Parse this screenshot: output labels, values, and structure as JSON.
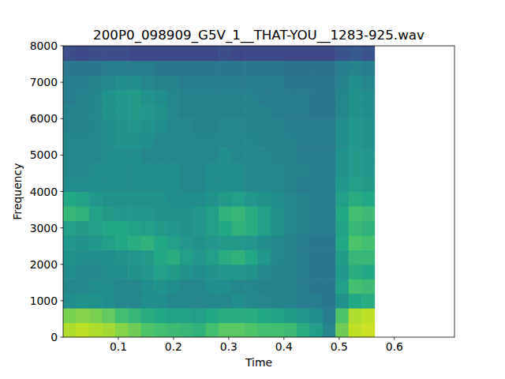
{
  "chart_data": {
    "type": "heatmap",
    "title": "200P0_098909_G5V_1__THAT-YOU__1283-925.wav",
    "x_label": "Time",
    "y_label": "Frequency",
    "xlim": [
      0,
      0.709
    ],
    "ylim": [
      0,
      8000
    ],
    "xticks": [
      0.1,
      0.2,
      0.3,
      0.4,
      0.5,
      0.6
    ],
    "yticks": [
      0,
      1000,
      2000,
      3000,
      4000,
      5000,
      6000,
      7000,
      8000
    ],
    "color_range": [
      0,
      100
    ],
    "x": [
      0,
      0.0235,
      0.047,
      0.0705,
      0.094,
      0.1175,
      0.141,
      0.1645,
      0.188,
      0.2115,
      0.235,
      0.2585,
      0.282,
      0.3055,
      0.329,
      0.3525,
      0.376,
      0.3995,
      0.423,
      0.4465,
      0.47,
      0.4935,
      0.517,
      0.5405,
      0.564
    ],
    "y": [
      0,
      400,
      800,
      1200,
      1600,
      2000,
      2400,
      2800,
      3200,
      3600,
      4000,
      4400,
      4800,
      5200,
      5600,
      6000,
      6400,
      6800,
      7200,
      7600,
      8000
    ],
    "cells": [
      [
        88,
        90,
        88,
        86,
        82,
        78,
        72,
        70,
        68,
        66,
        64,
        70,
        74,
        74,
        72,
        70,
        70,
        68,
        62,
        55,
        45,
        78,
        90,
        92
      ],
      [
        80,
        82,
        80,
        76,
        70,
        66,
        62,
        60,
        58,
        58,
        56,
        60,
        62,
        62,
        62,
        60,
        58,
        55,
        52,
        48,
        42,
        72,
        88,
        90
      ],
      [
        48,
        50,
        50,
        48,
        46,
        46,
        48,
        48,
        46,
        46,
        45,
        46,
        46,
        48,
        46,
        45,
        44,
        44,
        42,
        42,
        40,
        50,
        60,
        62
      ],
      [
        46,
        46,
        48,
        48,
        46,
        46,
        48,
        50,
        48,
        46,
        46,
        48,
        48,
        46,
        46,
        44,
        44,
        44,
        42,
        40,
        40,
        56,
        70,
        68
      ],
      [
        48,
        46,
        46,
        48,
        48,
        50,
        52,
        56,
        54,
        50,
        48,
        50,
        52,
        52,
        50,
        46,
        44,
        44,
        42,
        40,
        40,
        52,
        62,
        60
      ],
      [
        50,
        48,
        48,
        48,
        50,
        52,
        54,
        60,
        62,
        56,
        52,
        56,
        62,
        64,
        60,
        52,
        46,
        44,
        42,
        40,
        40,
        55,
        66,
        66
      ],
      [
        52,
        50,
        52,
        56,
        60,
        62,
        64,
        60,
        56,
        52,
        50,
        52,
        54,
        54,
        52,
        48,
        46,
        44,
        42,
        40,
        40,
        60,
        72,
        70
      ],
      [
        56,
        54,
        56,
        60,
        60,
        58,
        56,
        54,
        52,
        50,
        52,
        56,
        60,
        64,
        62,
        56,
        50,
        46,
        44,
        42,
        42,
        58,
        66,
        64
      ],
      [
        66,
        64,
        58,
        54,
        52,
        52,
        52,
        50,
        50,
        50,
        52,
        56,
        64,
        66,
        62,
        56,
        50,
        46,
        44,
        42,
        42,
        60,
        70,
        68
      ],
      [
        60,
        58,
        52,
        50,
        50,
        50,
        50,
        50,
        48,
        48,
        48,
        50,
        54,
        56,
        52,
        50,
        48,
        46,
        44,
        42,
        42,
        56,
        62,
        60
      ],
      [
        48,
        48,
        48,
        48,
        48,
        48,
        48,
        48,
        48,
        46,
        46,
        48,
        48,
        48,
        46,
        46,
        46,
        44,
        42,
        42,
        42,
        52,
        56,
        54
      ],
      [
        46,
        46,
        48,
        48,
        48,
        48,
        48,
        48,
        48,
        46,
        46,
        48,
        48,
        48,
        46,
        46,
        46,
        44,
        44,
        42,
        42,
        50,
        54,
        52
      ],
      [
        46,
        46,
        46,
        48,
        48,
        48,
        46,
        46,
        46,
        46,
        46,
        46,
        48,
        46,
        46,
        46,
        44,
        44,
        42,
        42,
        42,
        50,
        54,
        52
      ],
      [
        46,
        46,
        46,
        48,
        50,
        50,
        48,
        46,
        46,
        46,
        46,
        46,
        46,
        46,
        46,
        44,
        44,
        44,
        42,
        42,
        42,
        48,
        52,
        50
      ],
      [
        44,
        44,
        46,
        48,
        50,
        52,
        50,
        48,
        46,
        46,
        44,
        44,
        46,
        46,
        44,
        44,
        44,
        42,
        42,
        42,
        42,
        48,
        52,
        50
      ],
      [
        44,
        44,
        46,
        50,
        52,
        54,
        52,
        50,
        46,
        44,
        44,
        44,
        44,
        44,
        44,
        44,
        42,
        42,
        42,
        40,
        40,
        46,
        50,
        48
      ],
      [
        42,
        44,
        46,
        50,
        52,
        54,
        50,
        48,
        46,
        44,
        44,
        44,
        44,
        44,
        44,
        42,
        42,
        42,
        42,
        40,
        40,
        46,
        50,
        48
      ],
      [
        42,
        42,
        44,
        46,
        48,
        48,
        46,
        44,
        44,
        42,
        42,
        42,
        42,
        42,
        42,
        42,
        42,
        40,
        40,
        40,
        40,
        44,
        48,
        46
      ],
      [
        40,
        40,
        40,
        42,
        42,
        42,
        42,
        40,
        40,
        40,
        40,
        40,
        40,
        40,
        40,
        40,
        40,
        38,
        38,
        38,
        38,
        42,
        44,
        42
      ],
      [
        24,
        22,
        24,
        24,
        24,
        22,
        22,
        22,
        22,
        22,
        22,
        22,
        24,
        22,
        22,
        22,
        22,
        22,
        22,
        22,
        22,
        26,
        28,
        26
      ]
    ]
  }
}
